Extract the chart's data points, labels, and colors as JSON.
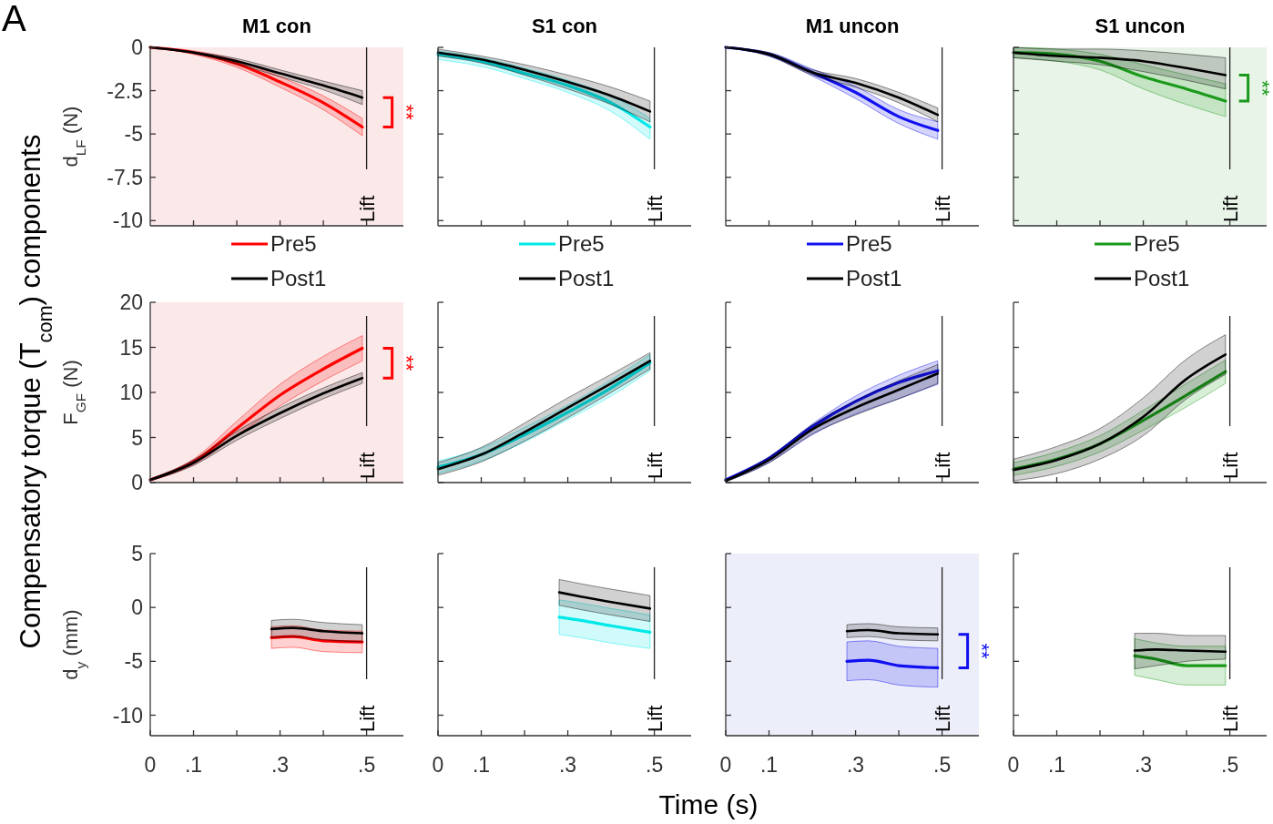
{
  "chart_data": [
    {
      "type": "line",
      "title": "M1 con",
      "ylabel": "d$_{LF}$ (N)",
      "xlim": [
        0,
        0.585
      ],
      "ylim": [
        -10.3,
        0
      ],
      "xticks": [
        0.1,
        0.2,
        0.3,
        0.4,
        0.5
      ],
      "yticks": [
        0,
        -2.5,
        -5,
        -7.5,
        -10
      ],
      "tick_labels": "y",
      "legend": "bottom",
      "bands": [
        {
          "axis": "x",
          "from": 0,
          "to": 0.585,
          "color": "#fbe8e8"
        }
      ],
      "ref_lines": [
        {
          "axis": "x",
          "value": 0.5,
          "label": "Lift"
        }
      ],
      "annotations": [
        "A",
        "**"
      ],
      "x": [
        0,
        0.1,
        0.2,
        0.3,
        0.4,
        0.49
      ],
      "series": [
        {
          "name": "Pre5",
          "color": "#ff0000",
          "values": [
            0,
            -0.3,
            -0.95,
            -2.0,
            -3.2,
            -4.6
          ],
          "lower": [
            0,
            -0.4,
            -1.15,
            -2.3,
            -3.6,
            -5.1
          ],
          "upper": [
            0,
            -0.2,
            -0.75,
            -1.7,
            -2.8,
            -4.1
          ]
        },
        {
          "name": "Post1",
          "color": "#000000",
          "values": [
            0,
            -0.3,
            -0.8,
            -1.5,
            -2.2,
            -2.9
          ],
          "lower": [
            0,
            -0.35,
            -0.95,
            -1.7,
            -2.45,
            -3.3
          ],
          "upper": [
            0,
            -0.25,
            -0.65,
            -1.3,
            -1.95,
            -2.5
          ]
        }
      ]
    },
    {
      "type": "line",
      "title": "S1 con",
      "xlim": [
        0,
        0.585
      ],
      "ylim": [
        -10.3,
        0
      ],
      "xticks": [
        0.1,
        0.2,
        0.3,
        0.4,
        0.5
      ],
      "yticks": [
        0,
        -2.5,
        -5,
        -7.5,
        -10
      ],
      "tick_labels": false,
      "legend": "bottom",
      "ref_lines": [
        {
          "axis": "x",
          "value": 0.5,
          "label": "Lift"
        }
      ],
      "x": [
        0,
        0.1,
        0.2,
        0.3,
        0.4,
        0.49
      ],
      "series": [
        {
          "name": "Pre5",
          "color": "#00e8e8",
          "values": [
            -0.4,
            -0.8,
            -1.5,
            -2.2,
            -3.2,
            -4.6
          ],
          "lower": [
            -0.7,
            -1.1,
            -1.8,
            -2.6,
            -3.7,
            -5.3
          ],
          "upper": [
            -0.2,
            -0.6,
            -1.2,
            -1.9,
            -2.8,
            -4.1
          ]
        },
        {
          "name": "Post1",
          "color": "#000000",
          "values": [
            -0.3,
            -0.7,
            -1.3,
            -2.0,
            -2.8,
            -3.7
          ],
          "lower": [
            -0.5,
            -0.9,
            -1.6,
            -2.4,
            -3.3,
            -4.3
          ],
          "upper": [
            -0.1,
            -0.5,
            -1.0,
            -1.6,
            -2.3,
            -3.1
          ]
        }
      ]
    },
    {
      "type": "line",
      "title": "M1 uncon",
      "xlim": [
        0,
        0.585
      ],
      "ylim": [
        -10.3,
        0
      ],
      "xticks": [
        0.1,
        0.2,
        0.3,
        0.4,
        0.5
      ],
      "yticks": [
        0,
        -2.5,
        -5,
        -7.5,
        -10
      ],
      "tick_labels": false,
      "legend": "bottom",
      "ref_lines": [
        {
          "axis": "x",
          "value": 0.5,
          "label": "Lift"
        }
      ],
      "x": [
        0,
        0.1,
        0.2,
        0.3,
        0.4,
        0.49
      ],
      "series": [
        {
          "name": "Pre5",
          "color": "#1010f0",
          "values": [
            0,
            -0.4,
            -1.45,
            -2.6,
            -4.0,
            -4.8
          ],
          "lower": [
            0,
            -0.5,
            -1.65,
            -2.95,
            -4.4,
            -5.3
          ],
          "upper": [
            0,
            -0.3,
            -1.25,
            -2.25,
            -3.6,
            -4.3
          ]
        },
        {
          "name": "Post1",
          "color": "#000000",
          "values": [
            0,
            -0.4,
            -1.45,
            -2.05,
            -2.9,
            -3.9
          ],
          "lower": [
            0,
            -0.5,
            -1.6,
            -2.3,
            -3.2,
            -4.3
          ],
          "upper": [
            0,
            -0.3,
            -1.3,
            -1.8,
            -2.6,
            -3.5
          ]
        }
      ]
    },
    {
      "type": "line",
      "title": "S1 uncon",
      "xlim": [
        0,
        0.585
      ],
      "ylim": [
        -10.3,
        0
      ],
      "xticks": [
        0.1,
        0.2,
        0.3,
        0.4,
        0.5
      ],
      "yticks": [
        0,
        -2.5,
        -5,
        -7.5,
        -10
      ],
      "tick_labels": false,
      "legend": "bottom",
      "bands": [
        {
          "axis": "x",
          "from": 0,
          "to": 0.585,
          "color": "#e9f4e9"
        }
      ],
      "ref_lines": [
        {
          "axis": "x",
          "value": 0.5,
          "label": "Lift"
        }
      ],
      "annotations": [
        "**"
      ],
      "x": [
        0,
        0.1,
        0.2,
        0.3,
        0.4,
        0.49
      ],
      "series": [
        {
          "name": "Pre5",
          "color": "#1a9a1a",
          "values": [
            -0.3,
            -0.4,
            -0.8,
            -1.7,
            -2.4,
            -3.1
          ],
          "lower": [
            -0.6,
            -0.8,
            -1.3,
            -2.4,
            -3.3,
            -4.0
          ],
          "upper": [
            0,
            -0.1,
            -0.4,
            -1.0,
            -1.6,
            -2.1
          ]
        },
        {
          "name": "Post1",
          "color": "#000000",
          "values": [
            -0.3,
            -0.5,
            -0.6,
            -0.8,
            -1.2,
            -1.6
          ],
          "lower": [
            -0.6,
            -0.8,
            -1.0,
            -1.4,
            -1.9,
            -2.4
          ],
          "upper": [
            0,
            -0.1,
            -0.1,
            -0.2,
            -0.4,
            -0.6
          ]
        }
      ]
    },
    {
      "type": "line",
      "ylabel": "F$_{GF}$ (N)",
      "xlim": [
        0,
        0.585
      ],
      "ylim": [
        0,
        20
      ],
      "xticks": [
        0.1,
        0.2,
        0.3,
        0.4,
        0.5
      ],
      "yticks": [
        0,
        5,
        10,
        15,
        20
      ],
      "tick_labels": "y",
      "bands": [
        {
          "axis": "x",
          "from": 0,
          "to": 0.585,
          "color": "#fbe8e8"
        }
      ],
      "ref_lines": [
        {
          "axis": "x",
          "value": 0.5,
          "label": "Lift"
        }
      ],
      "annotations": [
        "Compensatory torque (T$_{com}$) components",
        "**"
      ],
      "x": [
        0,
        0.1,
        0.2,
        0.3,
        0.4,
        0.49
      ],
      "series": [
        {
          "color": "#ff0000",
          "values": [
            0.3,
            2.3,
            6.0,
            9.7,
            12.6,
            14.9
          ],
          "lower": [
            0.2,
            2.0,
            5.2,
            8.5,
            11.3,
            13.5
          ],
          "upper": [
            0.4,
            2.6,
            6.8,
            10.9,
            14.0,
            16.3
          ]
        },
        {
          "color": "#000000",
          "values": [
            0.3,
            2.2,
            5.2,
            7.7,
            9.9,
            11.6
          ],
          "lower": [
            0.2,
            1.9,
            4.7,
            7.1,
            9.3,
            11.0
          ],
          "upper": [
            0.4,
            2.5,
            5.7,
            8.3,
            10.5,
            12.2
          ]
        }
      ]
    },
    {
      "type": "line",
      "xlim": [
        0,
        0.585
      ],
      "ylim": [
        0,
        20
      ],
      "xticks": [
        0.1,
        0.2,
        0.3,
        0.4,
        0.5
      ],
      "yticks": [
        0,
        5,
        10,
        15,
        20
      ],
      "tick_labels": false,
      "ref_lines": [
        {
          "axis": "x",
          "value": 0.5,
          "label": "Lift"
        }
      ],
      "x": [
        0,
        0.1,
        0.2,
        0.3,
        0.4,
        0.49
      ],
      "series": [
        {
          "color": "#00e8e8",
          "values": [
            1.7,
            3.1,
            5.3,
            7.8,
            10.5,
            13.3
          ],
          "lower": [
            1.0,
            2.4,
            4.5,
            7.0,
            9.6,
            12.4
          ],
          "upper": [
            2.4,
            3.8,
            6.1,
            8.6,
            11.4,
            14.2
          ]
        },
        {
          "color": "#000000",
          "values": [
            1.5,
            3.1,
            5.6,
            8.3,
            11.0,
            13.5
          ],
          "lower": [
            0.8,
            2.3,
            4.6,
            7.2,
            10.0,
            12.6
          ],
          "upper": [
            2.2,
            3.9,
            6.6,
            9.4,
            12.0,
            14.4
          ]
        }
      ]
    },
    {
      "type": "line",
      "xlim": [
        0,
        0.585
      ],
      "ylim": [
        0,
        20
      ],
      "xticks": [
        0.1,
        0.2,
        0.3,
        0.4,
        0.5
      ],
      "yticks": [
        0,
        5,
        10,
        15,
        20
      ],
      "tick_labels": false,
      "ref_lines": [
        {
          "axis": "x",
          "value": 0.5,
          "label": "Lift"
        }
      ],
      "x": [
        0,
        0.1,
        0.2,
        0.3,
        0.4,
        0.49
      ],
      "series": [
        {
          "color": "#1010f0",
          "values": [
            0.3,
            2.7,
            6.2,
            9.0,
            11.1,
            12.4
          ],
          "lower": [
            0.1,
            2.2,
            5.3,
            7.6,
            9.3,
            10.9
          ],
          "upper": [
            0.3,
            2.8,
            6.5,
            9.6,
            11.9,
            13.5
          ]
        },
        {
          "color": "#000000",
          "values": [
            0.2,
            2.5,
            5.9,
            8.3,
            10.3,
            12.1
          ],
          "lower": [
            0.1,
            2.2,
            5.4,
            7.5,
            9.3,
            11.0
          ],
          "upper": [
            0.3,
            2.8,
            6.4,
            9.1,
            11.3,
            13.1
          ]
        }
      ]
    },
    {
      "type": "line",
      "xlim": [
        0,
        0.585
      ],
      "ylim": [
        0,
        20
      ],
      "xticks": [
        0.1,
        0.2,
        0.3,
        0.4,
        0.5
      ],
      "yticks": [
        0,
        5,
        10,
        15,
        20
      ],
      "tick_labels": false,
      "ref_lines": [
        {
          "axis": "x",
          "value": 0.5,
          "label": "Lift"
        }
      ],
      "x": [
        0,
        0.1,
        0.2,
        0.3,
        0.4,
        0.49
      ],
      "series": [
        {
          "color": "#1a9a1a",
          "values": [
            1.5,
            2.6,
            4.3,
            6.9,
            9.7,
            12.3
          ],
          "lower": [
            0.8,
            1.8,
            3.4,
            5.8,
            8.4,
            11.0
          ],
          "upper": [
            2.2,
            3.4,
            5.2,
            8.0,
            11.0,
            13.6
          ]
        },
        {
          "color": "#000000",
          "values": [
            1.4,
            2.5,
            4.3,
            7.3,
            11.5,
            14.2
          ],
          "lower": [
            0.2,
            1.0,
            2.6,
            5.2,
            9.3,
            12.0
          ],
          "upper": [
            2.6,
            4.0,
            6.0,
            9.4,
            13.7,
            16.4
          ]
        }
      ]
    },
    {
      "type": "line",
      "ylabel": "d$_{y}$ (mm)",
      "xlim": [
        0,
        0.585
      ],
      "ylim": [
        -11.9,
        5
      ],
      "xticks": [
        0,
        {
          "value": 0.1,
          "label": ".1"
        },
        {
          "value": 0.2,
          "label": null
        },
        {
          "value": 0.3,
          "label": ".3"
        },
        {
          "value": 0.4,
          "label": null
        },
        {
          "value": 0.5,
          "label": ".5"
        }
      ],
      "yticks": [
        5,
        0,
        -5,
        -10
      ],
      "ref_lines": [
        {
          "axis": "x",
          "value": 0.5,
          "label": "Lift"
        }
      ],
      "x": [
        0.28,
        0.33,
        0.4,
        0.49
      ],
      "series": [
        {
          "color": "#ff0000",
          "values": [
            -2.8,
            -2.7,
            -3.1,
            -3.2
          ],
          "lower": [
            -3.8,
            -3.7,
            -4.1,
            -4.2
          ],
          "upper": [
            -1.8,
            -1.7,
            -2.1,
            -2.2
          ]
        },
        {
          "color": "#000000",
          "values": [
            -2.0,
            -1.9,
            -2.2,
            -2.4
          ],
          "lower": [
            -2.8,
            -2.7,
            -3.0,
            -3.2
          ],
          "upper": [
            -1.2,
            -1.1,
            -1.4,
            -1.6
          ]
        }
      ]
    },
    {
      "type": "line",
      "xlabel": "Time (s)",
      "xlim": [
        0,
        0.585
      ],
      "ylim": [
        -11.9,
        5
      ],
      "xticks": [
        0,
        {
          "value": 0.1,
          "label": ".1"
        },
        {
          "value": 0.2,
          "label": null
        },
        {
          "value": 0.3,
          "label": ".3"
        },
        {
          "value": 0.4,
          "label": null
        },
        {
          "value": 0.5,
          "label": ".5"
        }
      ],
      "yticks": [
        5,
        0,
        -5,
        -10
      ],
      "tick_labels": "x",
      "ref_lines": [
        {
          "axis": "x",
          "value": 0.5,
          "label": "Lift"
        }
      ],
      "x": [
        0.28,
        0.33,
        0.4,
        0.49
      ],
      "series": [
        {
          "color": "#00e8e8",
          "values": [
            -0.9,
            -1.2,
            -1.7,
            -2.3
          ],
          "lower": [
            -2.5,
            -2.8,
            -3.3,
            -3.8
          ],
          "upper": [
            0.7,
            0.4,
            -0.1,
            -0.7
          ]
        },
        {
          "color": "#000000",
          "values": [
            1.4,
            1.0,
            0.5,
            -0.1
          ],
          "lower": [
            0.2,
            -0.2,
            -0.7,
            -1.3
          ],
          "upper": [
            2.6,
            2.2,
            1.7,
            1.1
          ]
        }
      ]
    },
    {
      "type": "line",
      "xlim": [
        0,
        0.585
      ],
      "ylim": [
        -11.9,
        5
      ],
      "xticks": [
        0,
        {
          "value": 0.1,
          "label": ".1"
        },
        {
          "value": 0.2,
          "label": null
        },
        {
          "value": 0.3,
          "label": ".3"
        },
        {
          "value": 0.4,
          "label": null
        },
        {
          "value": 0.5,
          "label": ".5"
        }
      ],
      "yticks": [
        5,
        0,
        -5,
        -10
      ],
      "tick_labels": "x",
      "bands": [
        {
          "axis": "x",
          "from": 0,
          "to": 0.585,
          "color": "#eceef9"
        }
      ],
      "ref_lines": [
        {
          "axis": "x",
          "value": 0.5,
          "label": "Lift"
        }
      ],
      "annotations": [
        "**"
      ],
      "x": [
        0.28,
        0.33,
        0.4,
        0.49
      ],
      "series": [
        {
          "color": "#1010f0",
          "values": [
            -5.0,
            -4.9,
            -5.4,
            -5.6
          ],
          "lower": [
            -6.8,
            -6.7,
            -7.2,
            -7.4
          ],
          "upper": [
            -3.2,
            -3.1,
            -3.6,
            -3.8
          ]
        },
        {
          "color": "#000000",
          "values": [
            -2.2,
            -2.1,
            -2.4,
            -2.5
          ],
          "lower": [
            -2.8,
            -2.7,
            -3.0,
            -3.1
          ],
          "upper": [
            -1.6,
            -1.5,
            -1.8,
            -1.9
          ]
        }
      ]
    },
    {
      "type": "line",
      "xlim": [
        0,
        0.585
      ],
      "ylim": [
        -11.9,
        5
      ],
      "xticks": [
        0,
        {
          "value": 0.1,
          "label": ".1"
        },
        {
          "value": 0.2,
          "label": null
        },
        {
          "value": 0.3,
          "label": ".3"
        },
        {
          "value": 0.4,
          "label": null
        },
        {
          "value": 0.5,
          "label": ".5"
        }
      ],
      "yticks": [
        5,
        0,
        -5,
        -10
      ],
      "tick_labels": "x",
      "ref_lines": [
        {
          "axis": "x",
          "value": 0.5,
          "label": "Lift"
        }
      ],
      "x": [
        0.28,
        0.33,
        0.4,
        0.49
      ],
      "series": [
        {
          "color": "#1a9a1a",
          "values": [
            -4.5,
            -4.8,
            -5.4,
            -5.4
          ],
          "lower": [
            -6.3,
            -6.7,
            -7.2,
            -7.2
          ],
          "upper": [
            -2.9,
            -3.3,
            -3.6,
            -3.6
          ]
        },
        {
          "color": "#000000",
          "values": [
            -4.0,
            -3.9,
            -4.0,
            -4.1
          ],
          "lower": [
            -5.7,
            -5.4,
            -5.0,
            -4.8
          ],
          "upper": [
            -2.4,
            -2.4,
            -2.6,
            -2.6
          ]
        }
      ]
    }
  ]
}
